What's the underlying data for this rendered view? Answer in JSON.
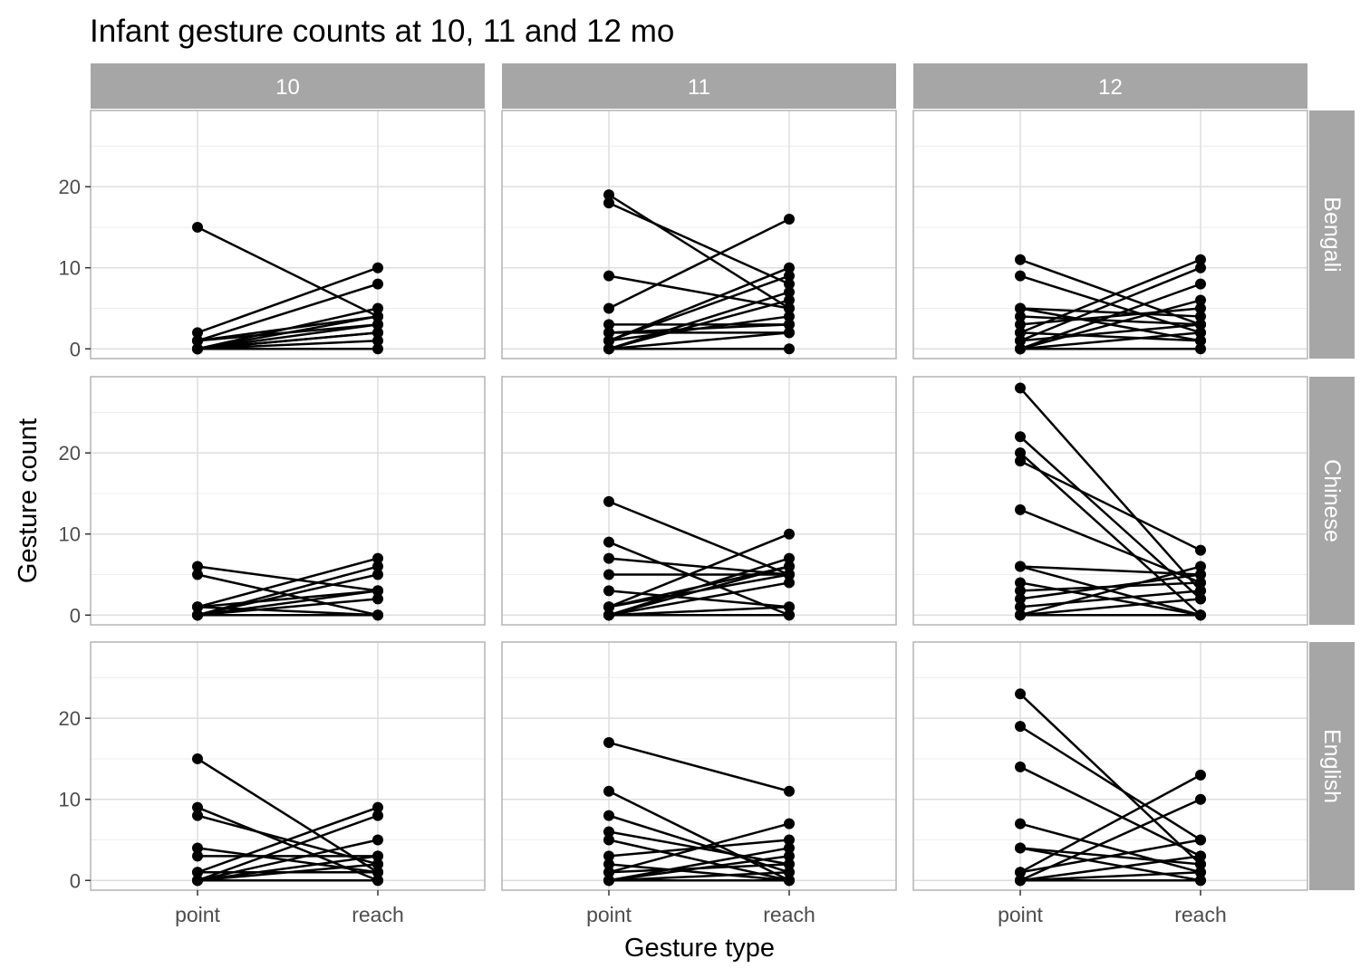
{
  "chart_data": {
    "type": "line",
    "title": "Infant gesture counts at 10, 11 and 12 mo",
    "xlabel": "Gesture type",
    "ylabel": "Gesture count",
    "x_categories": [
      "point",
      "reach"
    ],
    "ylim": [
      -1.2,
      29.4
    ],
    "y_ticks": [
      0,
      10,
      20
    ],
    "grid": true,
    "facet_columns": [
      "10",
      "11",
      "12"
    ],
    "facet_rows": [
      "Bengali",
      "Chinese",
      "English"
    ],
    "panels": [
      {
        "age": "10",
        "language": "Bengali",
        "pairs": [
          [
            15,
            4
          ],
          [
            2,
            10
          ],
          [
            1,
            8
          ],
          [
            0,
            5
          ],
          [
            1,
            4
          ],
          [
            0,
            3
          ],
          [
            0,
            2
          ],
          [
            0,
            1
          ],
          [
            0,
            0
          ],
          [
            0,
            4
          ],
          [
            0,
            2
          ],
          [
            1,
            3
          ]
        ]
      },
      {
        "age": "11",
        "language": "Bengali",
        "pairs": [
          [
            19,
            5
          ],
          [
            18,
            8
          ],
          [
            9,
            5
          ],
          [
            5,
            16
          ],
          [
            3,
            3
          ],
          [
            2,
            3
          ],
          [
            1,
            10
          ],
          [
            1,
            9
          ],
          [
            0,
            7
          ],
          [
            0,
            6
          ],
          [
            0,
            2
          ],
          [
            0,
            0
          ],
          [
            2,
            2
          ],
          [
            1,
            4
          ]
        ]
      },
      {
        "age": "12",
        "language": "Bengali",
        "pairs": [
          [
            11,
            3
          ],
          [
            9,
            2
          ],
          [
            5,
            1
          ],
          [
            5,
            4
          ],
          [
            4,
            3
          ],
          [
            3,
            5
          ],
          [
            2,
            11
          ],
          [
            1,
            10
          ],
          [
            0,
            8
          ],
          [
            0,
            6
          ],
          [
            0,
            2
          ],
          [
            0,
            0
          ],
          [
            1,
            3
          ],
          [
            2,
            1
          ]
        ]
      },
      {
        "age": "10",
        "language": "Chinese",
        "pairs": [
          [
            6,
            3
          ],
          [
            5,
            0
          ],
          [
            1,
            7
          ],
          [
            1,
            0
          ],
          [
            0,
            6
          ],
          [
            0,
            5
          ],
          [
            0,
            2
          ],
          [
            0,
            0
          ],
          [
            1,
            3
          ],
          [
            0,
            3
          ]
        ]
      },
      {
        "age": "11",
        "language": "Chinese",
        "pairs": [
          [
            14,
            5
          ],
          [
            9,
            0
          ],
          [
            7,
            5
          ],
          [
            5,
            5
          ],
          [
            3,
            1
          ],
          [
            1,
            10
          ],
          [
            1,
            6
          ],
          [
            0,
            7
          ],
          [
            0,
            4
          ],
          [
            0,
            0
          ],
          [
            0,
            1
          ],
          [
            1,
            5
          ],
          [
            0,
            6
          ]
        ]
      },
      {
        "age": "12",
        "language": "Chinese",
        "pairs": [
          [
            28,
            3
          ],
          [
            22,
            2
          ],
          [
            20,
            0
          ],
          [
            19,
            8
          ],
          [
            13,
            4
          ],
          [
            6,
            5
          ],
          [
            6,
            0
          ],
          [
            4,
            0
          ],
          [
            3,
            4
          ],
          [
            2,
            5
          ],
          [
            1,
            3
          ],
          [
            0,
            6
          ],
          [
            0,
            0
          ],
          [
            0,
            2
          ]
        ]
      },
      {
        "age": "10",
        "language": "English",
        "pairs": [
          [
            15,
            1
          ],
          [
            9,
            0
          ],
          [
            8,
            2
          ],
          [
            4,
            1
          ],
          [
            3,
            3
          ],
          [
            1,
            9
          ],
          [
            0,
            8
          ],
          [
            0,
            5
          ],
          [
            0,
            0
          ],
          [
            0,
            2
          ],
          [
            1,
            1
          ],
          [
            0,
            3
          ]
        ]
      },
      {
        "age": "11",
        "language": "English",
        "pairs": [
          [
            17,
            11
          ],
          [
            11,
            0
          ],
          [
            8,
            1
          ],
          [
            6,
            2
          ],
          [
            5,
            0
          ],
          [
            3,
            5
          ],
          [
            2,
            0
          ],
          [
            1,
            7
          ],
          [
            0,
            4
          ],
          [
            0,
            3
          ],
          [
            0,
            0
          ],
          [
            0,
            1
          ],
          [
            1,
            2
          ]
        ]
      },
      {
        "age": "12",
        "language": "English",
        "pairs": [
          [
            23,
            2
          ],
          [
            19,
            5
          ],
          [
            14,
            3
          ],
          [
            7,
            1
          ],
          [
            4,
            0
          ],
          [
            4,
            2
          ],
          [
            1,
            13
          ],
          [
            0,
            10
          ],
          [
            1,
            5
          ],
          [
            0,
            3
          ],
          [
            0,
            0
          ],
          [
            0,
            1
          ]
        ]
      }
    ]
  }
}
